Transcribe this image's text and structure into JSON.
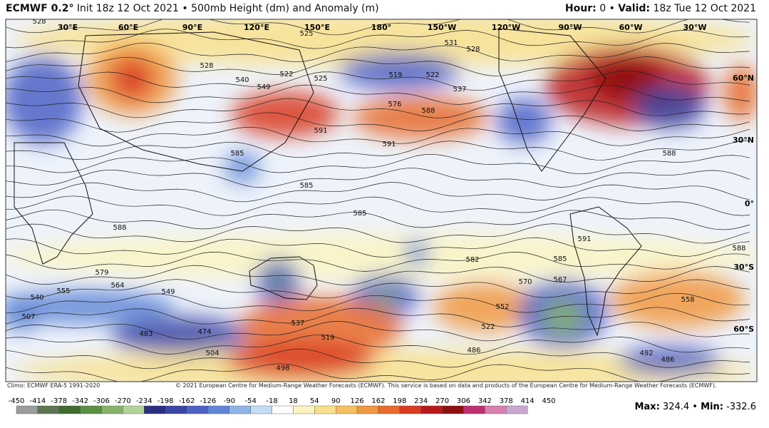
{
  "header": {
    "model": "ECMWF 0.2°",
    "subtitle": "Init 18z 12 Oct 2021",
    "product": "500mb Height (dm) and Anomaly (m)",
    "separator": "•",
    "hour_label": "Hour:",
    "hour": "0",
    "valid_label": "Valid:",
    "valid": "18z Tue 12 Oct 2021"
  },
  "map": {
    "lon_labels": [
      "30°E",
      "60°E",
      "90°E",
      "120°E",
      "150°E",
      "180°",
      "150°W",
      "120°W",
      "90°W",
      "60°W",
      "30°W"
    ],
    "lat_labels": [
      "60°N",
      "30°N",
      "0°",
      "30°S",
      "60°S"
    ],
    "contour_labels": [
      528,
      525,
      531,
      528,
      528,
      540,
      549,
      522,
      525,
      519,
      522,
      537,
      576,
      588,
      591,
      591,
      585,
      585,
      585,
      588,
      588,
      591,
      588,
      582,
      585,
      579,
      564,
      549,
      540,
      555,
      507,
      537,
      519,
      483,
      474,
      486,
      486,
      552,
      522,
      558,
      492,
      498,
      504,
      570,
      567
    ]
  },
  "footer": {
    "climo": "Climo: ECMWF ERA-5 1991-2020",
    "copyright": "© 2021 European Centre for Medium-Range Weather Forecasts (ECMWF). This service is based on data and products of the European Centre for Medium-Range Weather Forecasts (ECMWF)."
  },
  "colorbar": {
    "ticks": [
      -450,
      -414,
      -378,
      -342,
      -306,
      -270,
      -234,
      -198,
      -162,
      -126,
      -90,
      -54,
      -18,
      18,
      54,
      90,
      126,
      162,
      198,
      234,
      270,
      306,
      342,
      378,
      414,
      450
    ],
    "colors": [
      "#9c9c9c",
      "#5d7553",
      "#3e6b2f",
      "#5b9044",
      "#86b46a",
      "#b2d49a",
      "#2b2f80",
      "#3a45a5",
      "#4d62c4",
      "#5f86d6",
      "#8fb5e6",
      "#c6dcf4",
      "#ffffff",
      "#fbf4c0",
      "#f8e08a",
      "#f5c060",
      "#f09840",
      "#e86a2c",
      "#d93a22",
      "#b81a1a",
      "#8c1010",
      "#c03070",
      "#d880b0",
      "#c8a8d0"
    ]
  },
  "stats": {
    "max_label": "Max:",
    "max": 324.4,
    "min_label": "Min:",
    "min": -332.6
  }
}
